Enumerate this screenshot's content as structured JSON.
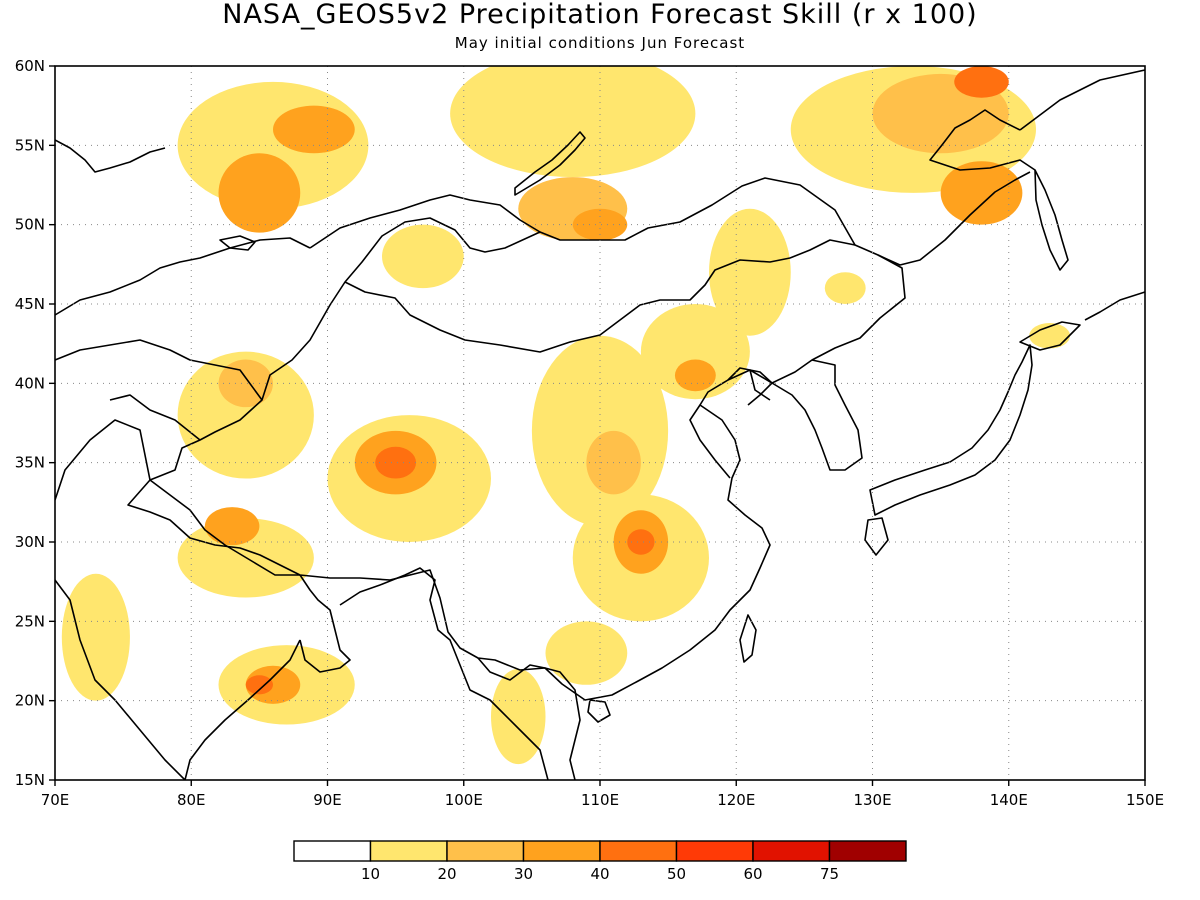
{
  "title": "NASA_GEOS5v2 Precipitation Forecast Skill (r x 100)",
  "subtitle": "May initial conditions  Jun Forecast",
  "map": {
    "lon_range": [
      70,
      150
    ],
    "lat_range": [
      15,
      60
    ],
    "lon_ticks": [
      {
        "value": 70,
        "label": "70E"
      },
      {
        "value": 80,
        "label": "80E"
      },
      {
        "value": 90,
        "label": "90E"
      },
      {
        "value": 100,
        "label": "100E"
      },
      {
        "value": 110,
        "label": "110E"
      },
      {
        "value": 120,
        "label": "120E"
      },
      {
        "value": 130,
        "label": "130E"
      },
      {
        "value": 140,
        "label": "140E"
      },
      {
        "value": 150,
        "label": "150E"
      }
    ],
    "lat_ticks": [
      {
        "value": 15,
        "label": "15N"
      },
      {
        "value": 20,
        "label": "20N"
      },
      {
        "value": 25,
        "label": "25N"
      },
      {
        "value": 30,
        "label": "30N"
      },
      {
        "value": 35,
        "label": "35N"
      },
      {
        "value": 40,
        "label": "40N"
      },
      {
        "value": 45,
        "label": "45N"
      },
      {
        "value": 50,
        "label": "50N"
      },
      {
        "value": 55,
        "label": "55N"
      },
      {
        "value": 60,
        "label": "60N"
      }
    ],
    "gridlines": "dotted"
  },
  "colorbar": {
    "colors": [
      "#ffffff",
      "#ffe66e",
      "#ffc04a",
      "#ffa21e",
      "#ff7010",
      "#ff3a06",
      "#e11200",
      "#a00000"
    ],
    "labels": [
      "10",
      "20",
      "30",
      "40",
      "50",
      "60",
      "75"
    ]
  },
  "chart_data": {
    "type": "heatmap",
    "variable": "Precipitation Forecast Skill (r x 100)",
    "xrange": [
      70,
      150
    ],
    "yrange": [
      15,
      60
    ],
    "levels": [
      10,
      20,
      30,
      40,
      50,
      60,
      75
    ],
    "regions": [
      {
        "lon": 86,
        "lat": 55,
        "rx": 7,
        "ry": 4,
        "level": 1
      },
      {
        "lon": 85,
        "lat": 52,
        "rx": 3,
        "ry": 2.5,
        "level": 3
      },
      {
        "lon": 89,
        "lat": 56,
        "rx": 3,
        "ry": 1.5,
        "level": 3
      },
      {
        "lon": 84,
        "lat": 38,
        "rx": 5,
        "ry": 4,
        "level": 1
      },
      {
        "lon": 84,
        "lat": 40,
        "rx": 2,
        "ry": 1.5,
        "level": 2
      },
      {
        "lon": 96,
        "lat": 34,
        "rx": 6,
        "ry": 4,
        "level": 1
      },
      {
        "lon": 95,
        "lat": 35,
        "rx": 3,
        "ry": 2,
        "level": 3
      },
      {
        "lon": 95,
        "lat": 35,
        "rx": 1.5,
        "ry": 1,
        "level": 4
      },
      {
        "lon": 84,
        "lat": 29,
        "rx": 5,
        "ry": 2.5,
        "level": 1
      },
      {
        "lon": 83,
        "lat": 31,
        "rx": 2,
        "ry": 1.2,
        "level": 3
      },
      {
        "lon": 87,
        "lat": 21,
        "rx": 5,
        "ry": 2.5,
        "level": 1
      },
      {
        "lon": 86,
        "lat": 21,
        "rx": 2,
        "ry": 1.2,
        "level": 3
      },
      {
        "lon": 85,
        "lat": 21,
        "rx": 1,
        "ry": 0.6,
        "level": 4
      },
      {
        "lon": 113,
        "lat": 29,
        "rx": 5,
        "ry": 4,
        "level": 1
      },
      {
        "lon": 113,
        "lat": 30,
        "rx": 2,
        "ry": 2,
        "level": 3
      },
      {
        "lon": 113,
        "lat": 30,
        "rx": 1,
        "ry": 0.8,
        "level": 4
      },
      {
        "lon": 110,
        "lat": 37,
        "rx": 5,
        "ry": 6,
        "level": 1
      },
      {
        "lon": 111,
        "lat": 35,
        "rx": 2,
        "ry": 2,
        "level": 2
      },
      {
        "lon": 117,
        "lat": 42,
        "rx": 4,
        "ry": 3,
        "level": 1
      },
      {
        "lon": 117,
        "lat": 40.5,
        "rx": 1.5,
        "ry": 1,
        "level": 3
      },
      {
        "lon": 108,
        "lat": 57,
        "rx": 9,
        "ry": 4,
        "level": 1
      },
      {
        "lon": 108,
        "lat": 51,
        "rx": 4,
        "ry": 2,
        "level": 2
      },
      {
        "lon": 110,
        "lat": 50,
        "rx": 2,
        "ry": 1,
        "level": 3
      },
      {
        "lon": 133,
        "lat": 56,
        "rx": 9,
        "ry": 4,
        "level": 1
      },
      {
        "lon": 135,
        "lat": 57,
        "rx": 5,
        "ry": 2.5,
        "level": 2
      },
      {
        "lon": 138,
        "lat": 52,
        "rx": 3,
        "ry": 2,
        "level": 3
      },
      {
        "lon": 138,
        "lat": 59,
        "rx": 2,
        "ry": 1,
        "level": 4
      },
      {
        "lon": 121,
        "lat": 47,
        "rx": 3,
        "ry": 4,
        "level": 1
      },
      {
        "lon": 97,
        "lat": 48,
        "rx": 3,
        "ry": 2,
        "level": 1
      },
      {
        "lon": 109,
        "lat": 23,
        "rx": 3,
        "ry": 2,
        "level": 1
      },
      {
        "lon": 104,
        "lat": 19,
        "rx": 2,
        "ry": 3,
        "level": 1
      },
      {
        "lon": 73,
        "lat": 24,
        "rx": 2.5,
        "ry": 4,
        "level": 1
      },
      {
        "lon": 143,
        "lat": 43,
        "rx": 1.5,
        "ry": 0.8,
        "level": 1
      },
      {
        "lon": 128,
        "lat": 46,
        "rx": 1.5,
        "ry": 1,
        "level": 1
      }
    ]
  }
}
